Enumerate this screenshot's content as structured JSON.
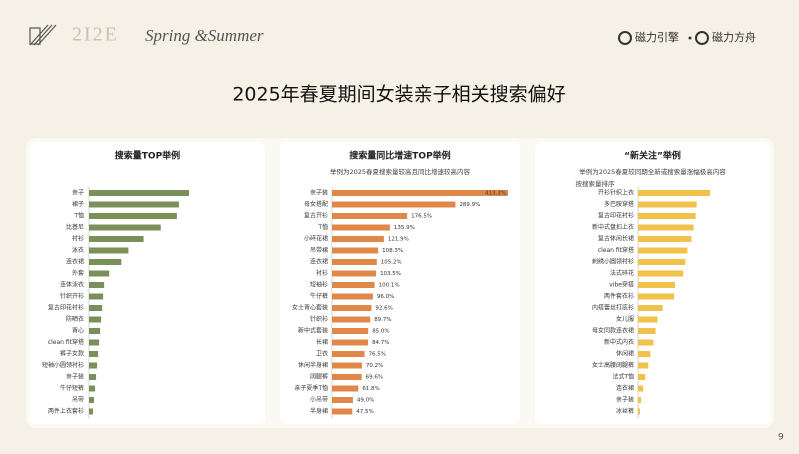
{
  "header": {
    "logo": "2I2E",
    "logo_script": "Spring &Summer",
    "brand_1": "磁力引擎",
    "brand_2": "磁力方舟"
  },
  "title": "2025年春夏期间女装亲子相关搜索偏好",
  "page_number": "9",
  "chart_data": [
    {
      "type": "bar",
      "title": "搜索量TOP举例",
      "color": "#7a8f5a",
      "categories": [
        "亲子",
        "裙子",
        "T恤",
        "比基尼",
        "衬衫",
        "泳衣",
        "连衣裙",
        "外套",
        "连体泳衣",
        "针织开衫",
        "复古印花衬衫",
        "防晒衣",
        "背心",
        "clean fit穿搭",
        "裤子女款",
        "短袖小圆领衬衫",
        "亲子装",
        "牛仔短裤",
        "吊带",
        "两件上衣套衫"
      ],
      "values": [
        99,
        89,
        87,
        71,
        54,
        39,
        32,
        20,
        15,
        14,
        13,
        12,
        11,
        10,
        9,
        8,
        7,
        6,
        5,
        4
      ]
    },
    {
      "type": "bar",
      "title": "搜索量同比增速TOP举例",
      "subtitle": "举例为2025春夏搜索量较高且同比增速较高内容",
      "color": "#e0874a",
      "categories": [
        "亲子装",
        "母女搭配",
        "复古开衫",
        "T恤",
        "小碎花裙",
        "吊带裙",
        "连衣裙",
        "衬衫",
        "短袖衫",
        "牛仔裤",
        "女士背心套装",
        "针织衫",
        "新中式套装",
        "长裙",
        "卫衣",
        "休闲半身裙",
        "阔腿裤",
        "亲子夏季T恤",
        "小吊带",
        "半身裙"
      ],
      "values": [
        413.3,
        289.9,
        176.5,
        135.9,
        121.9,
        108.3,
        105.2,
        103.5,
        100.1,
        96.0,
        92.6,
        89.7,
        85.0,
        84.7,
        76.5,
        70.2,
        69.6,
        61.8,
        49.0,
        47.5
      ],
      "value_labels": [
        "413.3%",
        "289.9%",
        "176.5%",
        "135.9%",
        "121.9%",
        "108.3%",
        "105.2%",
        "103.5%",
        "100.1%",
        "96.0%",
        "92.6%",
        "89.7%",
        "85.0%",
        "84.7%",
        "76.5%",
        "70.2%",
        "69.6%",
        "61.8%",
        "49.0%",
        "47.5%"
      ]
    },
    {
      "type": "bar",
      "title": "“新关注”举例",
      "subtitle": "举例为2025春夏较同期全新或搜索量涨幅极高内容",
      "subtitle_2": "按搜索量排序",
      "color": "#f0c24a",
      "categories": [
        "开衫针织上衣",
        "多巴胺穿搭",
        "复古印花衬衫",
        "新中式盘扣上衣",
        "复古休闲长裙",
        "clean fit穿搭",
        "刺绣小圆领衬衫",
        "法式碎花",
        "vibe穿搭",
        "两件套衣衫",
        "内搭蕾丝打底衫",
        "女儿服",
        "母女同款连衣裙",
        "新中式内衣",
        "休闲裙",
        "女士高腰阔腿裤",
        "法式T恤",
        "连衣裙",
        "亲子装",
        "冰丝裤"
      ],
      "values": [
        70,
        57,
        56,
        54,
        52,
        48,
        46,
        44,
        36,
        35,
        24,
        19,
        17,
        15,
        12,
        10,
        7,
        5,
        3,
        2
      ]
    }
  ]
}
